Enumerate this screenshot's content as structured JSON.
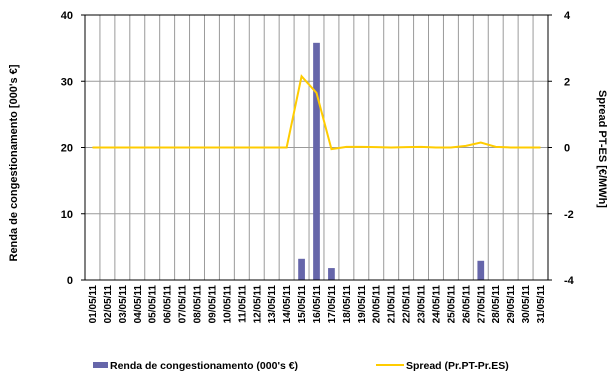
{
  "chart_data": {
    "type": "bar+line",
    "categories": [
      "01/05/11",
      "02/05/11",
      "03/05/11",
      "04/05/11",
      "05/05/11",
      "06/05/11",
      "07/05/11",
      "08/05/11",
      "09/05/11",
      "10/05/11",
      "11/05/11",
      "12/05/11",
      "13/05/11",
      "14/05/11",
      "15/05/11",
      "16/05/11",
      "17/05/11",
      "18/05/11",
      "19/05/11",
      "20/05/11",
      "21/05/11",
      "22/05/11",
      "23/05/11",
      "24/05/11",
      "25/05/11",
      "26/05/11",
      "27/05/11",
      "28/05/11",
      "29/05/11",
      "30/05/11",
      "31/05/11"
    ],
    "ylabel_left": "Renda de congestionamento [000's €]",
    "ylabel_right": "Spread PT-ES [€/MWh]",
    "ylim_left": [
      0,
      40
    ],
    "yticks_left": [
      0,
      10,
      20,
      30,
      40
    ],
    "ylim_right": [
      -4,
      4
    ],
    "yticks_right": [
      -4,
      -2,
      0,
      2,
      4
    ],
    "grid": true,
    "legend_position": "bottom",
    "series": [
      {
        "name": "Renda de congestionamento (000's €)",
        "type": "bar",
        "axis": "left",
        "color": "#6666aa",
        "values": [
          0,
          0,
          0,
          0,
          0,
          0,
          0,
          0,
          0,
          0,
          0,
          0,
          0,
          0,
          3.2,
          35.8,
          1.8,
          0,
          0,
          0,
          0,
          0,
          0,
          0,
          0,
          0,
          2.9,
          0,
          0,
          0,
          0
        ]
      },
      {
        "name": "Spread (Pr.PT-Pr.ES)",
        "type": "line",
        "axis": "right",
        "color": "#ffcc00",
        "values": [
          0,
          0,
          0,
          0,
          0,
          0,
          0,
          0,
          0,
          0,
          0,
          0,
          0,
          0,
          2.15,
          1.65,
          -0.05,
          0.02,
          0.02,
          0.01,
          0,
          0.01,
          0.02,
          0,
          0,
          0.05,
          0.15,
          0.02,
          0,
          0,
          0
        ]
      }
    ]
  }
}
